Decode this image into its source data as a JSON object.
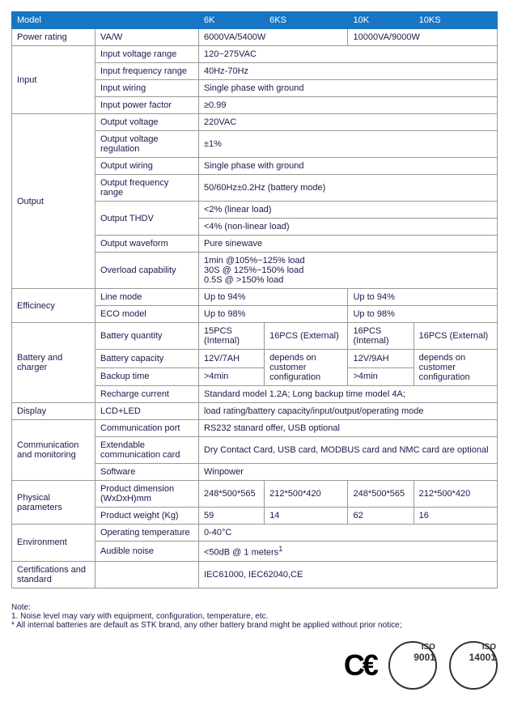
{
  "header": {
    "model": "Model",
    "c1": "6K",
    "c2": "6KS",
    "c3": "10K",
    "c4": "10KS"
  },
  "pr": {
    "cat": "Power rating",
    "sub": "VA/W",
    "v1": "6000VA/5400W",
    "v2": "10000VA/9000W"
  },
  "in": {
    "cat": "Input",
    "s1": "Input voltage range",
    "v1": "120~275VAC",
    "s2": "Input frequency range",
    "v2": "40Hz-70Hz",
    "s3": "Input wiring",
    "v3": "Single phase with ground",
    "s4": "Input power factor",
    "v4": "≥0.99"
  },
  "out": {
    "cat": "Output",
    "s1": "Output voltage",
    "v1": "220VAC",
    "s2": "Output voltage regulation",
    "v2": "±1%",
    "s3": "Output wiring",
    "v3": "Single phase with ground",
    "s4": "Output frequency range",
    "v4": "50/60Hz±0.2Hz  (battery mode)",
    "s5": "Output THDV",
    "v5a": "<2%  (linear load)",
    "v5b": "<4% (non-linear load)",
    "s6": "Output waveform",
    "v6": "Pure sinewave",
    "s7": "Overload capability",
    "v7": "1min @105%~125% load\n30S  @ 125%~150% load\n0.5S  @ >150% load"
  },
  "eff": {
    "cat": "Efficinecy",
    "s1": "Line mode",
    "v1a": "Up to 94%",
    "v1b": "Up to 94%",
    "s2": "ECO model",
    "v2a": "Up to 98%",
    "v2b": "Up to 98%"
  },
  "bat": {
    "cat": "Battery and charger",
    "s1": "Battery quantity",
    "v1a": "15PCS (Internal)",
    "v1b": "16PCS (External)",
    "v1c": "16PCS (Internal)",
    "v1d": "16PCS (External)",
    "s2": "Battery capacity",
    "v2a": "12V/7AH",
    "v2b": "depends on customer configuration",
    "v2c": "12V/9AH",
    "v2d": "depends on customer configuration",
    "s3": "Backup time",
    "v3a": ">4min",
    "v3c": ">4min",
    "s4": "Recharge current",
    "v4": "Standard model 1.2A; Long backup time model 4A;"
  },
  "disp": {
    "cat": "Display",
    "sub": "LCD+LED",
    "v": "load rating/battery capacity/input/output/operating mode"
  },
  "com": {
    "cat": "Communication and monitoring",
    "s1": "Communication port",
    "v1": "RS232 stanard offer, USB optional",
    "s2": "Extendable communication card",
    "v2": "Dry Contact Card,  USB card, MODBUS card and NMC card are optional",
    "s3": "Software",
    "v3": "Winpower"
  },
  "phy": {
    "cat": "Physical parameters",
    "s1": "Product dimension (WxDxH)mm",
    "v1a": "248*500*565",
    "v1b": "212*500*420",
    "v1c": "248*500*565",
    "v1d": "212*500*420",
    "s2": "Product weight (Kg)",
    "v2a": "59",
    "v2b": "14",
    "v2c": "62",
    "v2d": "16"
  },
  "env": {
    "cat": "Environment",
    "s1": "Operating temperature",
    "v1": "0-40°C",
    "s2": "Audible noise",
    "v2": "<50dB @ 1 meters"
  },
  "cert": {
    "cat": "Certifications and standard",
    "v": "IEC61000, IEC62040,CE"
  },
  "note": {
    "title": "Note:",
    "l1": "1.  Noise level may vary with equipment, configuration, temperature, etc.",
    "l2": "*   All internal batteries are default as STK brand, any other battery brand might be applied without prior notice;"
  },
  "logos": {
    "ce": "C€",
    "iso1": "9001",
    "iso2": "14001"
  }
}
